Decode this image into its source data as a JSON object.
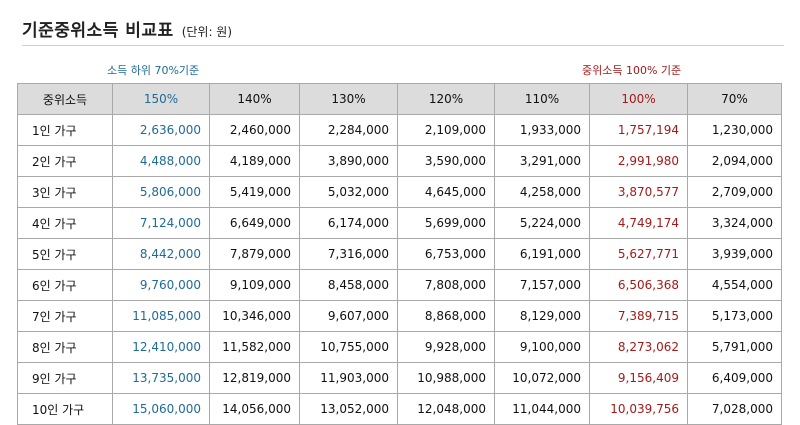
{
  "title": "기준중위소득 비교표",
  "unit": "(단위: 원)",
  "notes": {
    "left": "소득 하위 70%기준",
    "right": "중위소득 100% 기준"
  },
  "colors": {
    "accent_blue": "#1f6b96",
    "accent_red": "#a31a1a",
    "header_bg": "#dcdcdc"
  },
  "table": {
    "headers": [
      "중위소득",
      "150%",
      "140%",
      "130%",
      "120%",
      "110%",
      "100%",
      "70%"
    ],
    "rows": [
      [
        "1인 가구",
        "2,636,000",
        "2,460,000",
        "2,284,000",
        "2,109,000",
        "1,933,000",
        "1,757,194",
        "1,230,000"
      ],
      [
        "2인 가구",
        "4,488,000",
        "4,189,000",
        "3,890,000",
        "3,590,000",
        "3,291,000",
        "2,991,980",
        "2,094,000"
      ],
      [
        "3인 가구",
        "5,806,000",
        "5,419,000",
        "5,032,000",
        "4,645,000",
        "4,258,000",
        "3,870,577",
        "2,709,000"
      ],
      [
        "4인 가구",
        "7,124,000",
        "6,649,000",
        "6,174,000",
        "5,699,000",
        "5,224,000",
        "4,749,174",
        "3,324,000"
      ],
      [
        "5인 가구",
        "8,442,000",
        "7,879,000",
        "7,316,000",
        "6,753,000",
        "6,191,000",
        "5,627,771",
        "3,939,000"
      ],
      [
        "6인 가구",
        "9,760,000",
        "9,109,000",
        "8,458,000",
        "7,808,000",
        "7,157,000",
        "6,506,368",
        "4,554,000"
      ],
      [
        "7인 가구",
        "11,085,000",
        "10,346,000",
        "9,607,000",
        "8,868,000",
        "8,129,000",
        "7,389,715",
        "5,173,000"
      ],
      [
        "8인 가구",
        "12,410,000",
        "11,582,000",
        "10,755,000",
        "9,928,000",
        "9,100,000",
        "8,273,062",
        "5,791,000"
      ],
      [
        "9인 가구",
        "13,735,000",
        "12,819,000",
        "11,903,000",
        "10,988,000",
        "10,072,000",
        "9,156,409",
        "6,409,000"
      ],
      [
        "10인 가구",
        "15,060,000",
        "14,056,000",
        "13,052,000",
        "12,048,000",
        "11,044,000",
        "10,039,756",
        "7,028,000"
      ]
    ]
  }
}
